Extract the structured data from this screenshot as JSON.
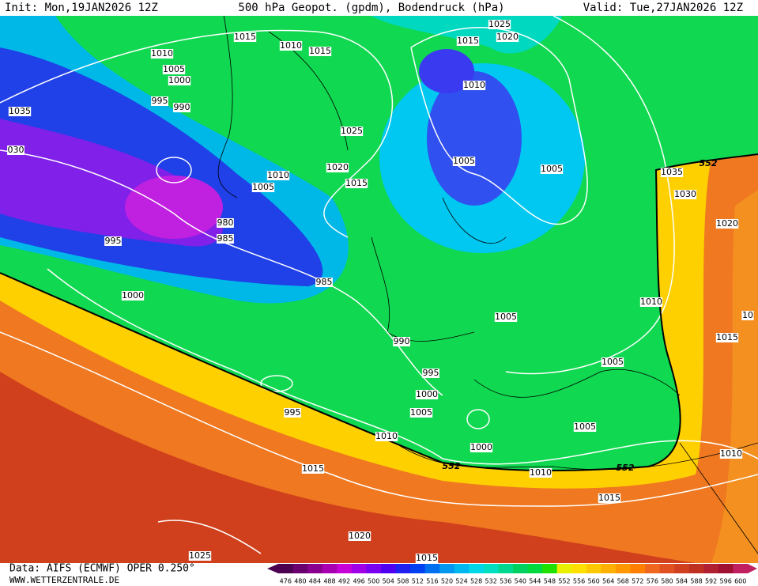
{
  "header": {
    "init": "Init: Mon,19JAN2026 12Z",
    "title": "500 hPa Geopot. (gpdm), Bodendruck (hPa)",
    "valid": "Valid: Tue,27JAN2026 12Z"
  },
  "isobar_labels": [
    "1015",
    "1010",
    "1005",
    "1000",
    "995",
    "990",
    "1035",
    "030",
    "1010",
    "1015",
    "1025",
    "1020",
    "1015",
    "1010",
    "1025",
    "1005",
    "1005",
    "1020",
    "1010",
    "1015",
    "1005",
    "980",
    "985",
    "995",
    "985",
    "1000",
    "1035",
    "1030",
    "1020",
    "1010",
    "1005",
    "990",
    "1015",
    "1005",
    "995",
    "1000",
    "1005",
    "995",
    "1005",
    "1010",
    "1000",
    "1015",
    "1010",
    "1015",
    "1010",
    "1020",
    "1025",
    "1015",
    "10"
  ],
  "geopotential_labels": [
    "552",
    "552",
    "552"
  ],
  "footer": {
    "source": "Data: AIFS (ECMWF) OPER 0.250°",
    "site": "WWW.WETTERZENTRALE.DE"
  },
  "color_scale": {
    "values": [
      476,
      480,
      484,
      488,
      492,
      496,
      500,
      504,
      508,
      512,
      516,
      520,
      524,
      528,
      532,
      536,
      540,
      544,
      548,
      552,
      556,
      560,
      564,
      568,
      572,
      576,
      580,
      584,
      588,
      592,
      596,
      600
    ],
    "colors": [
      "#4b0050",
      "#6a006e",
      "#8a008e",
      "#a800b0",
      "#c800d8",
      "#a000e8",
      "#7a00f0",
      "#5000f0",
      "#2020f0",
      "#0040f0",
      "#0070f0",
      "#0098f0",
      "#00b8f0",
      "#00d8e8",
      "#00e0c0",
      "#00d890",
      "#00d060",
      "#00d840",
      "#20e000",
      "#e8f000",
      "#ffe000",
      "#ffc800",
      "#ffb000",
      "#ff9800",
      "#ff8000",
      "#f06820",
      "#e05020",
      "#d04020",
      "#c03020",
      "#b02030",
      "#a01030",
      "#c02060"
    ]
  }
}
